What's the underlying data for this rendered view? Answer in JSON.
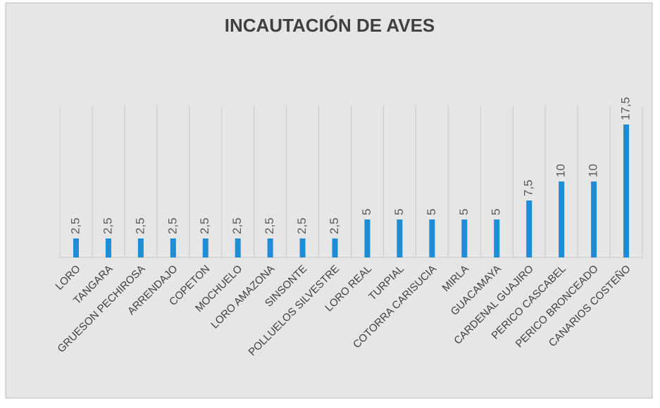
{
  "chart_data": {
    "type": "bar",
    "title": "INCAUTACIÓN DE AVES",
    "categories": [
      "LORO",
      "TANGARA",
      "GRUESON PECHIROSA",
      "ARRENDAJO",
      "COPETON",
      "MOCHUELO",
      "LORO AMAZONA",
      "SINSONTE",
      "POLLUELOS SILVESTRE",
      "LORO REAL",
      "TURPIAL",
      "COTORRA CARISUCIA",
      "MIRLA",
      "GUACAMAYA",
      "CARDENAL GUAJIRO",
      "PERICO CASCABEL",
      "PERICO BRONCEADO",
      "CANARIOS COSTEÑO"
    ],
    "values": [
      2.5,
      2.5,
      2.5,
      2.5,
      2.5,
      2.5,
      2.5,
      2.5,
      2.5,
      5,
      5,
      5,
      5,
      5,
      7.5,
      10,
      10,
      17.5
    ],
    "value_labels": [
      "2,5",
      "2,5",
      "2,5",
      "2,5",
      "2,5",
      "2,5",
      "2,5",
      "2,5",
      "2,5",
      "5",
      "5",
      "5",
      "5",
      "5",
      "7,5",
      "10",
      "10",
      "17,5"
    ],
    "color": "#1f8dd6"
  }
}
